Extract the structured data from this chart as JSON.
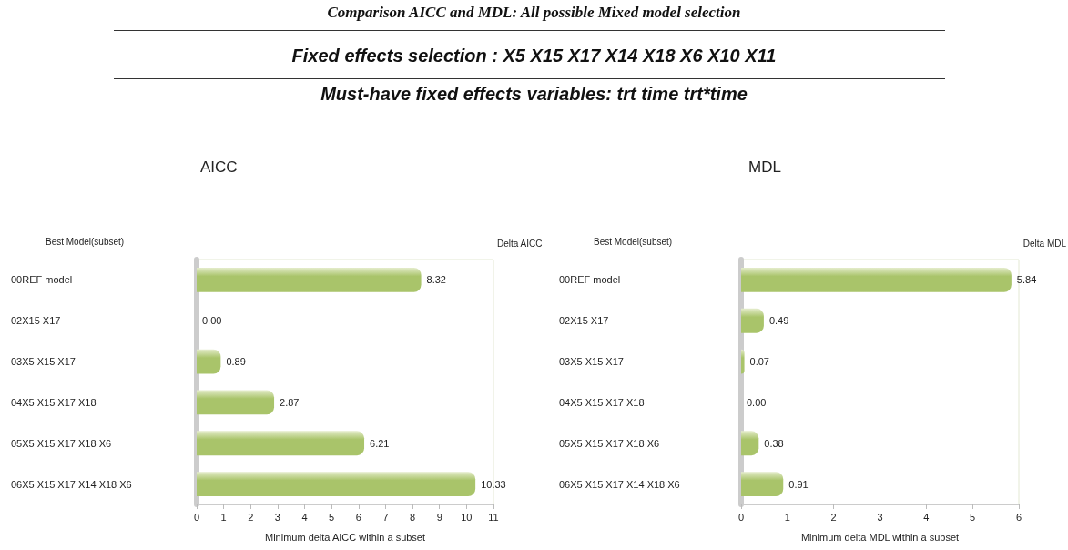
{
  "chart_data": [
    {
      "type": "bar",
      "orientation": "horizontal",
      "title": "AICC",
      "ylabel": "Best Model(subset)",
      "y2label": "Delta AICC",
      "xlabel": "Minimum delta AICC within a subset",
      "annotations": [
        "Comparison AICC and MDL: All possible Mixed model selection",
        "Fixed effects selection : X5 X15 X17 X14 X18 X6 X10 X11",
        "Must-have fixed effects variables: trt time trt*time"
      ],
      "categories": [
        "00REF model",
        "02X15 X17",
        "03X5 X15 X17",
        "04X5 X15 X17 X18",
        "05X5 X15 X17 X18 X6",
        "06X5 X15 X17 X14 X18 X6"
      ],
      "values": [
        8.32,
        0.0,
        0.89,
        2.87,
        6.21,
        10.33
      ],
      "value_labels": [
        "8.32",
        "0.00",
        "0.89",
        "2.87",
        "6.21",
        "10.33"
      ],
      "color": "#a9c46a",
      "xlim": [
        0,
        11
      ],
      "xticks": [
        0,
        1,
        2,
        3,
        4,
        5,
        6,
        7,
        8,
        9,
        10,
        11
      ],
      "grid": false
    },
    {
      "type": "bar",
      "orientation": "horizontal",
      "title": "MDL",
      "ylabel": "Best Model(subset)",
      "y2label": "Delta MDL",
      "xlabel": "Minimum delta MDL within a subset",
      "categories": [
        "00REF model",
        "02X15 X17",
        "03X5 X15 X17",
        "04X5 X15 X17 X18",
        "05X5 X15 X17 X18 X6",
        "06X5 X15 X17 X14 X18 X6"
      ],
      "values": [
        5.84,
        0.49,
        0.07,
        0.0,
        0.38,
        0.91
      ],
      "value_labels": [
        "5.84",
        "0.49",
        "0.07",
        "0.00",
        "0.38",
        "0.91"
      ],
      "color": "#a9c46a",
      "xlim": [
        0,
        6
      ],
      "xticks": [
        0,
        1,
        2,
        3,
        4,
        5,
        6
      ],
      "grid": false
    }
  ]
}
